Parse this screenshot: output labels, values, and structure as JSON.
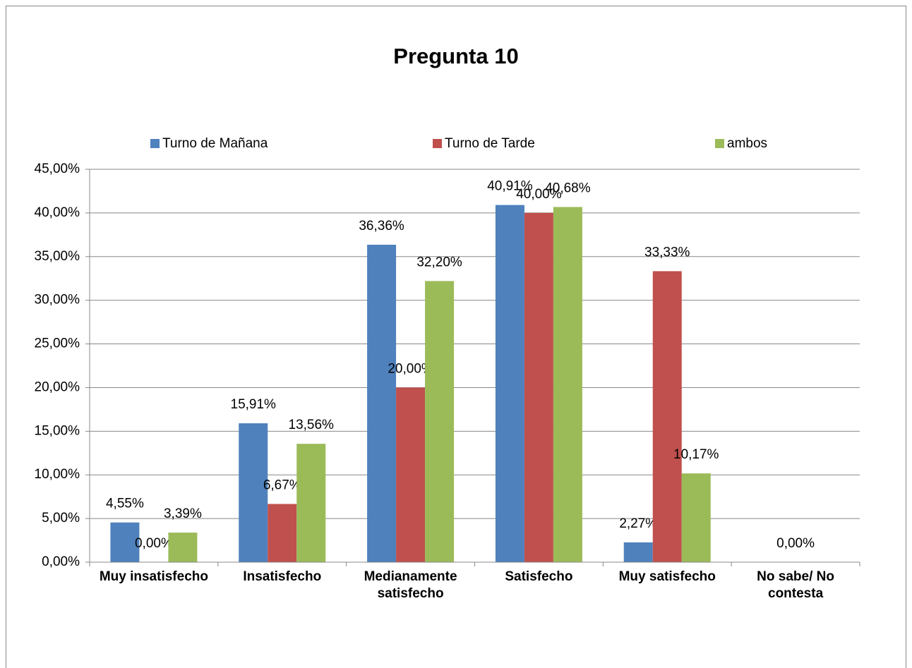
{
  "chart_data": {
    "type": "bar",
    "title": "Pregunta 10",
    "categories": [
      "Muy insatisfecho",
      "Insatisfecho",
      "Medianamente satisfecho",
      "Satisfecho",
      "Muy satisfecho",
      "No sabe/ No contesta"
    ],
    "series": [
      {
        "name": "Turno de Mañana",
        "color": "#4f81bd",
        "values": [
          4.55,
          15.91,
          36.36,
          40.91,
          2.27,
          null
        ],
        "value_labels": [
          "4,55%",
          "15,91%",
          "36,36%",
          "40,91%",
          "2,27%",
          null
        ]
      },
      {
        "name": "Turno de Tarde",
        "color": "#c0504d",
        "values": [
          0,
          6.67,
          20,
          40,
          33.33,
          0
        ],
        "value_labels": [
          "0,00%",
          "6,67%",
          "20,00%",
          "40,00%",
          "33,33%",
          "0,00%"
        ]
      },
      {
        "name": "ambos",
        "color": "#9bbb59",
        "values": [
          3.39,
          13.56,
          32.2,
          40.68,
          10.17,
          null
        ],
        "value_labels": [
          "3,39%",
          "13,56%",
          "32,20%",
          "40,68%",
          "10,17%",
          null
        ]
      }
    ],
    "ylim": [
      0,
      45
    ],
    "yticks": [
      {
        "value": 0,
        "label": "0,00%"
      },
      {
        "value": 5,
        "label": "5,00%"
      },
      {
        "value": 10,
        "label": "10,00%"
      },
      {
        "value": 15,
        "label": "15,00%"
      },
      {
        "value": 20,
        "label": "20,00%"
      },
      {
        "value": 25,
        "label": "25,00%"
      },
      {
        "value": 30,
        "label": "30,00%"
      },
      {
        "value": 35,
        "label": "35,00%"
      },
      {
        "value": 40,
        "label": "40,00%"
      },
      {
        "value": 45,
        "label": "45,00%"
      }
    ],
    "grid": true,
    "legend": "top"
  }
}
